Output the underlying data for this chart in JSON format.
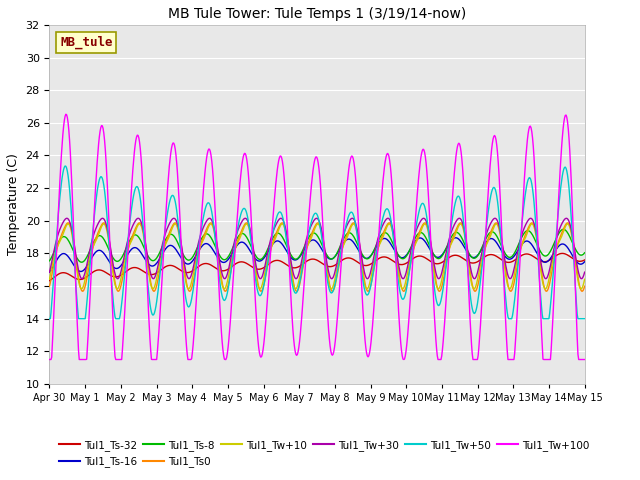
{
  "title": "MB Tule Tower: Tule Temps 1 (3/19/14-now)",
  "ylabel": "Temperature (C)",
  "ylim": [
    10,
    32
  ],
  "yticks": [
    10,
    12,
    14,
    16,
    18,
    20,
    22,
    24,
    26,
    28,
    30,
    32
  ],
  "fig_bg": "#ffffff",
  "plot_bg": "#e8e8e8",
  "series_colors": {
    "Tul1_Ts-32": "#cc0000",
    "Tul1_Ts-16": "#0000cc",
    "Tul1_Ts-8": "#00bb00",
    "Tul1_Ts0": "#ff8800",
    "Tul1_Tw+10": "#cccc00",
    "Tul1_Tw+30": "#aa00aa",
    "Tul1_Tw+50": "#00cccc",
    "Tul1_Tw+100": "#ff00ff"
  },
  "x_labels": [
    "Apr 30",
    "May 1",
    "May 2",
    "May 3",
    "May 4",
    "May 5",
    "May 6",
    "May 7",
    "May 8",
    "May 9",
    "May 10",
    "May 11",
    "May 12",
    "May 13",
    "May 14",
    "May 15"
  ],
  "n_days": 16,
  "label_box_color": "#ffffcc",
  "label_box_edge": "#999900",
  "label_text": "MB_tule",
  "label_text_color": "#880000"
}
